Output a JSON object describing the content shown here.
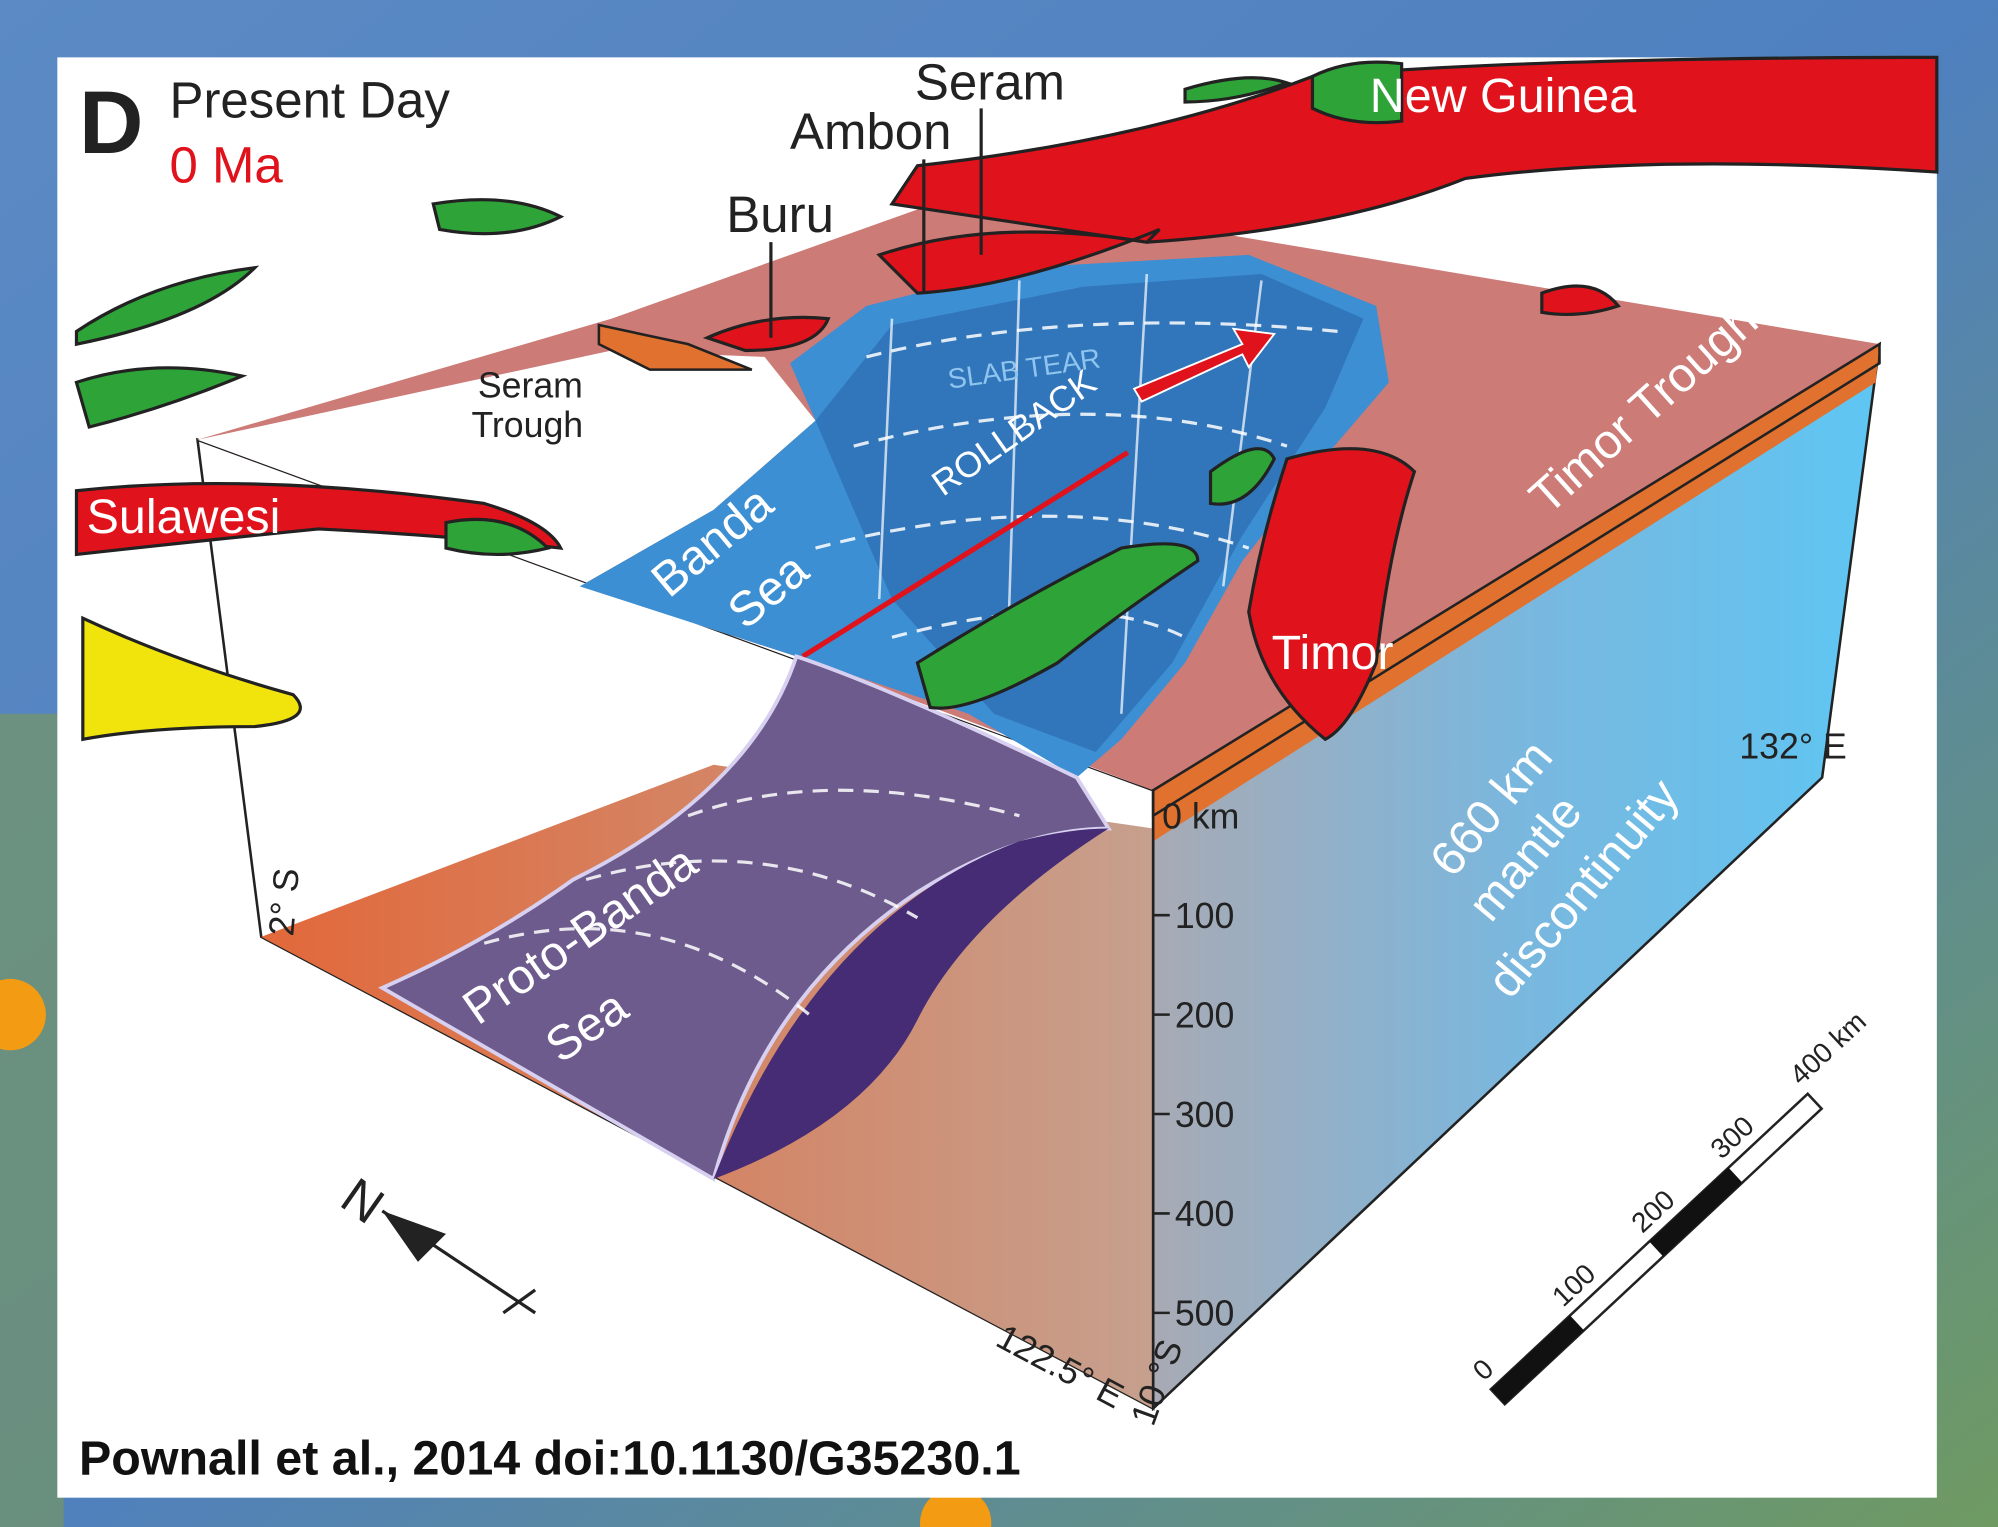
{
  "panel": {
    "letter": "D",
    "title": "Present Day",
    "age": "0 Ma"
  },
  "labels": {
    "seram": "Seram",
    "ambon": "Ambon",
    "buru": "Buru",
    "new_guinea": "New Guinea",
    "sulawesi": "Sulawesi",
    "seram_trough": [
      "Seram",
      "Trough"
    ],
    "banda_sea": [
      "Banda",
      "Sea"
    ],
    "slab_tear": "SLAB TEAR",
    "rollback": "ROLLBACK",
    "timor_trough": "Timor Trough",
    "timor": "Timor",
    "proto_banda_sea": [
      "Proto-Banda",
      "Sea"
    ],
    "mantle": [
      "660 km",
      "mantle",
      "discontinuity"
    ]
  },
  "coordinates": {
    "east_132": "132° E",
    "south_2": "2° S",
    "east_122_5": "122.5° E",
    "south_10": "10 °S"
  },
  "depth_axis": {
    "top": "0 km",
    "ticks": [
      "100",
      "200",
      "300",
      "400",
      "500"
    ]
  },
  "scale_bar": {
    "ticks": [
      "0",
      "100",
      "200",
      "300",
      "400 km"
    ]
  },
  "compass": "N",
  "citation": "Pownall et al., 2014 doi:10.1130/G35230.1"
}
